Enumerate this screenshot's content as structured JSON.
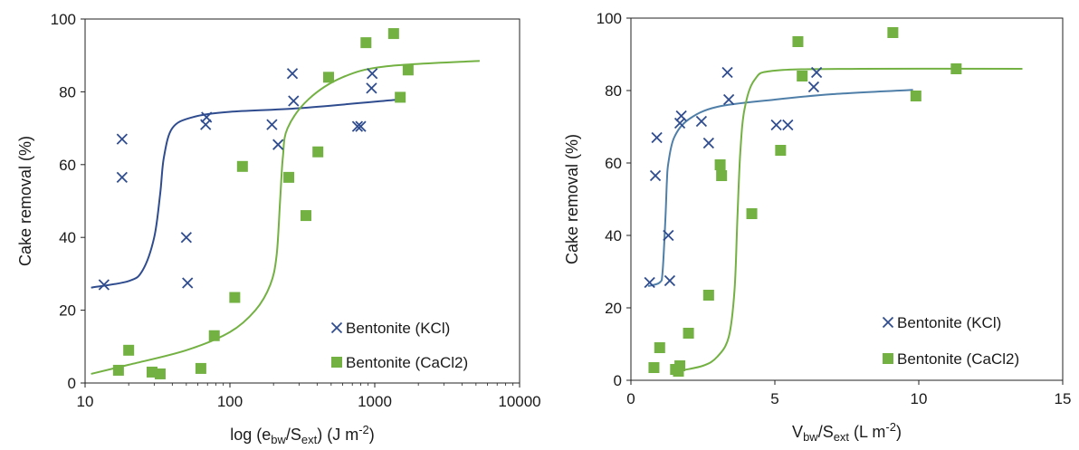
{
  "chart_data": [
    {
      "type": "scatter",
      "x_scale": "log",
      "xlim": [
        10,
        10000
      ],
      "ylim": [
        0,
        100
      ],
      "x_ticks": [
        "10",
        "100",
        "1000",
        "10000"
      ],
      "y_ticks": [
        "0",
        "20",
        "40",
        "60",
        "80",
        "100"
      ],
      "xlabel_parts": {
        "prefix": "log (e",
        "sub1": "bw",
        "mid": "/S",
        "sub2": "ext",
        "suffix": ") (J m",
        "sup": "-2",
        "end": ")"
      },
      "ylabel": "Cake removal (%)",
      "grid": false,
      "legend_position": "bottom-right",
      "series": [
        {
          "name": "Bentonite (KCl)",
          "marker": "x",
          "color": "#2f4c8f",
          "points": [
            [
              13.5,
              27
            ],
            [
              18,
              56.5
            ],
            [
              18,
              67
            ],
            [
              50,
              40
            ],
            [
              51,
              27.5
            ],
            [
              68,
              71
            ],
            [
              69,
              73
            ],
            [
              195,
              71
            ],
            [
              215,
              65.5
            ],
            [
              270,
              85
            ],
            [
              275,
              77.5
            ],
            [
              760,
              70.5
            ],
            [
              800,
              70.5
            ],
            [
              950,
              81
            ],
            [
              960,
              85
            ]
          ]
        },
        {
          "name": "Bentonite (CaCl2)",
          "marker": "square",
          "color": "#73b143",
          "points": [
            [
              17,
              3.5
            ],
            [
              20,
              9
            ],
            [
              29,
              3
            ],
            [
              33,
              2.5
            ],
            [
              63,
              4
            ],
            [
              78,
              13
            ],
            [
              108,
              23.5
            ],
            [
              122,
              59.5
            ],
            [
              255,
              56.5
            ],
            [
              335,
              46
            ],
            [
              405,
              63.5
            ],
            [
              480,
              84
            ],
            [
              870,
              93.5
            ],
            [
              1350,
              96
            ],
            [
              1500,
              78.5
            ],
            [
              1700,
              86
            ]
          ]
        }
      ],
      "fit_curves": [
        {
          "series": "Bentonite (KCl)",
          "color": "#2f4c8f",
          "points": [
            [
              11,
              26.2
            ],
            [
              20,
              28
            ],
            [
              25,
              31
            ],
            [
              30,
              40
            ],
            [
              33,
              52
            ],
            [
              35,
              62
            ],
            [
              40,
              70
            ],
            [
              55,
              73
            ],
            [
              100,
              74.5
            ],
            [
              300,
              75.5
            ],
            [
              1400,
              77.8
            ]
          ]
        },
        {
          "series": "Bentonite (CaCl2)",
          "color": "#73b143",
          "points": [
            [
              11,
              2.5
            ],
            [
              20,
              5
            ],
            [
              50,
              9
            ],
            [
              100,
              14
            ],
            [
              150,
              20
            ],
            [
              190,
              27
            ],
            [
              210,
              35
            ],
            [
              222,
              50
            ],
            [
              232,
              62
            ],
            [
              250,
              70
            ],
            [
              350,
              78
            ],
            [
              600,
              84
            ],
            [
              1200,
              87
            ],
            [
              5300,
              88.5
            ]
          ]
        }
      ]
    },
    {
      "type": "scatter",
      "xlim": [
        0,
        15
      ],
      "ylim": [
        0,
        100
      ],
      "x_ticks": [
        "0",
        "5",
        "10",
        "15"
      ],
      "y_ticks": [
        "0",
        "20",
        "40",
        "60",
        "80",
        "100"
      ],
      "xlabel_parts": {
        "prefix": "V",
        "sub1": "bw",
        "mid": "/S",
        "sub2": "ext",
        "suffix": " (L m",
        "sup": "-2",
        "end": ")"
      },
      "ylabel": "Cake removal (%)",
      "grid": false,
      "legend_position": "bottom-right",
      "series": [
        {
          "name": "Bentonite (KCl)",
          "marker": "x",
          "color": "#2f4c8f",
          "points": [
            [
              0.65,
              27
            ],
            [
              0.85,
              56.5
            ],
            [
              0.9,
              67
            ],
            [
              1.3,
              40
            ],
            [
              1.35,
              27.5
            ],
            [
              1.7,
              71
            ],
            [
              1.75,
              73
            ],
            [
              2.45,
              71.5
            ],
            [
              2.7,
              65.5
            ],
            [
              3.35,
              85
            ],
            [
              3.4,
              77.5
            ],
            [
              5.05,
              70.5
            ],
            [
              5.45,
              70.5
            ],
            [
              6.35,
              81
            ],
            [
              6.45,
              85
            ]
          ]
        },
        {
          "name": "Bentonite (CaCl2)",
          "marker": "square",
          "color": "#73b143",
          "points": [
            [
              0.8,
              3.5
            ],
            [
              1.0,
              9
            ],
            [
              1.55,
              3
            ],
            [
              1.65,
              2.5
            ],
            [
              1.7,
              4
            ],
            [
              2.0,
              13
            ],
            [
              2.7,
              23.5
            ],
            [
              3.1,
              59.5
            ],
            [
              3.15,
              56.5
            ],
            [
              4.2,
              46
            ],
            [
              5.2,
              63.5
            ],
            [
              5.8,
              93.5
            ],
            [
              5.95,
              84
            ],
            [
              9.1,
              96
            ],
            [
              9.9,
              78.5
            ],
            [
              11.3,
              86
            ]
          ]
        }
      ],
      "fit_curves": [
        {
          "series": "Bentonite (KCl)",
          "color": "#4f7fa8",
          "points": [
            [
              0.6,
              26
            ],
            [
              1.0,
              27
            ],
            [
              1.1,
              30
            ],
            [
              1.2,
              45
            ],
            [
              1.25,
              55
            ],
            [
              1.3,
              60
            ],
            [
              1.5,
              67
            ],
            [
              2.0,
              72
            ],
            [
              3.0,
              75.5
            ],
            [
              5.0,
              77.5
            ],
            [
              7.0,
              79
            ],
            [
              9.8,
              80.2
            ]
          ]
        },
        {
          "series": "Bentonite (CaCl2)",
          "color": "#73b143",
          "points": [
            [
              1.6,
              2.5
            ],
            [
              2.5,
              4
            ],
            [
              3.0,
              6.5
            ],
            [
              3.4,
              12
            ],
            [
              3.6,
              25
            ],
            [
              3.7,
              45
            ],
            [
              3.8,
              63
            ],
            [
              3.95,
              75
            ],
            [
              4.3,
              83
            ],
            [
              5.0,
              85.5
            ],
            [
              8.0,
              86
            ],
            [
              13.6,
              86
            ]
          ]
        }
      ]
    }
  ]
}
